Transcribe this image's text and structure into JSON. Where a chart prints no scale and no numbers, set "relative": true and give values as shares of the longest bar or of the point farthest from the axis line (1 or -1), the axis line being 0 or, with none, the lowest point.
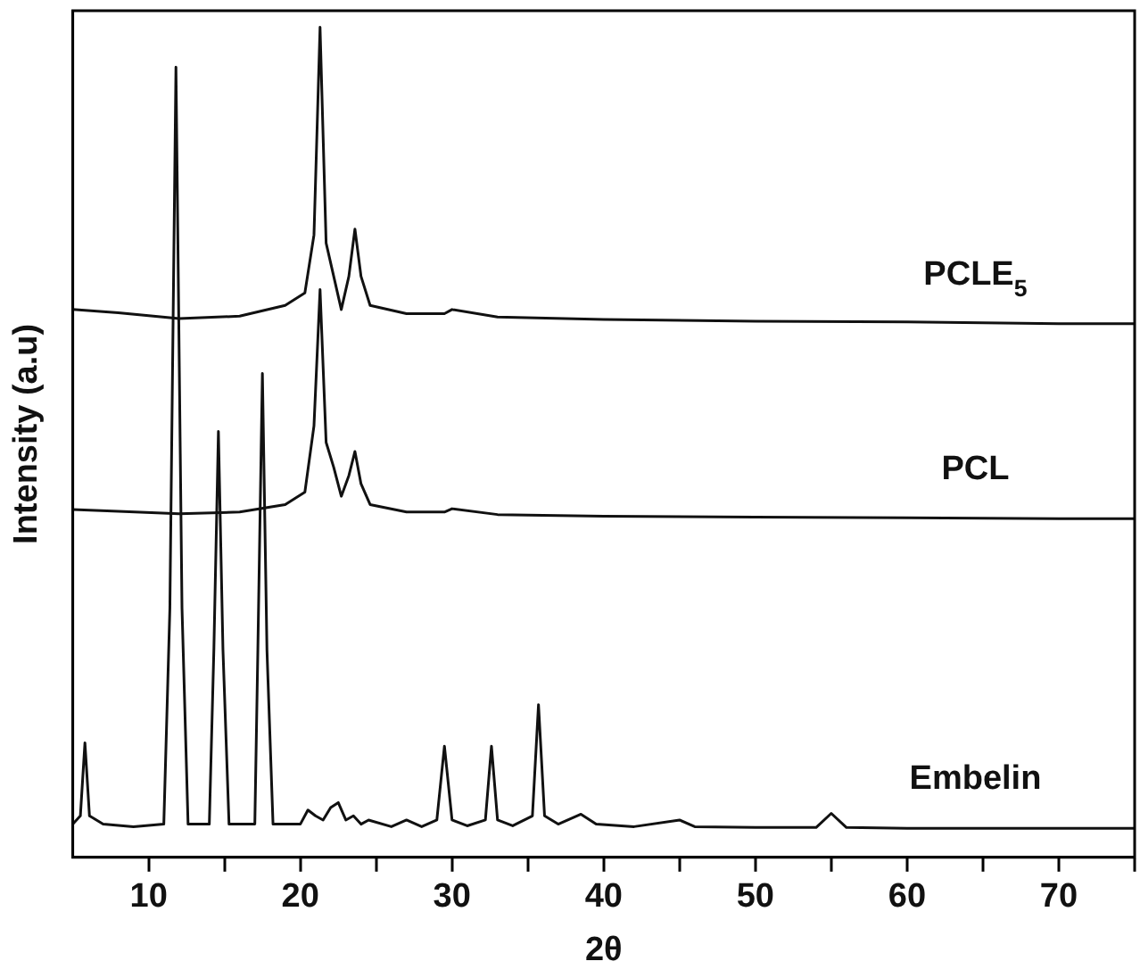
{
  "chart_data": {
    "type": "line",
    "relative": true,
    "xlabel": "2θ",
    "ylabel": "Intensity (a.u)",
    "xlim": [
      5,
      75
    ],
    "xticks": [
      10,
      {
        "value": 15,
        "label": null
      },
      20,
      {
        "value": 25,
        "label": null
      },
      30,
      {
        "value": 35,
        "label": null
      },
      40,
      {
        "value": 45,
        "label": null
      },
      50,
      {
        "value": 55,
        "label": null
      },
      60,
      {
        "value": 65,
        "label": null
      },
      70,
      {
        "value": 75,
        "label": null
      }
    ],
    "grid": false,
    "legend": false,
    "marker": "none",
    "line_style": "solid",
    "series": [
      {
        "name": "PCLE$_{5}$",
        "color": "#111111",
        "x": [
          5,
          8,
          12,
          16,
          19,
          20.3,
          20.9,
          21.3,
          21.7,
          22.2,
          22.7,
          23.2,
          23.6,
          24.0,
          24.6,
          27,
          29.5,
          30,
          33,
          40,
          50,
          60,
          70,
          75
        ],
        "values": [
          0.66,
          0.656,
          0.649,
          0.652,
          0.665,
          0.68,
          0.75,
          1.0,
          0.74,
          0.7,
          0.66,
          0.7,
          0.757,
          0.7,
          0.665,
          0.655,
          0.655,
          0.66,
          0.651,
          0.648,
          0.646,
          0.645,
          0.643,
          0.643
        ]
      },
      {
        "name": "PCL",
        "color": "#111111",
        "x": [
          5,
          8,
          12,
          16,
          19,
          20.3,
          20.9,
          21.3,
          21.7,
          22.2,
          22.7,
          23.2,
          23.6,
          24.0,
          24.6,
          27,
          29.5,
          30,
          33,
          40,
          50,
          60,
          70,
          75
        ],
        "values": [
          0.419,
          0.417,
          0.414,
          0.416,
          0.425,
          0.44,
          0.52,
          0.684,
          0.5,
          0.47,
          0.435,
          0.46,
          0.489,
          0.45,
          0.425,
          0.416,
          0.416,
          0.42,
          0.413,
          0.411,
          0.41,
          0.409,
          0.408,
          0.408
        ]
      },
      {
        "name": "Embelin",
        "color": "#111111",
        "x": [
          5,
          5.5,
          5.8,
          6.1,
          7,
          9,
          11,
          11.4,
          11.8,
          12.2,
          12.6,
          14,
          14.3,
          14.6,
          14.9,
          15.3,
          17,
          17.2,
          17.5,
          17.8,
          18.2,
          20,
          20.5,
          21,
          21.5,
          22,
          22.5,
          23,
          23.5,
          24,
          24.5,
          26,
          27,
          28,
          29,
          29.5,
          30,
          31,
          32.2,
          32.6,
          33,
          34,
          35.3,
          35.7,
          36.1,
          37,
          38.5,
          39.5,
          42,
          45,
          46,
          50,
          54,
          55,
          56,
          60,
          70,
          75
        ],
        "values": [
          0.04,
          0.05,
          0.138,
          0.05,
          0.04,
          0.037,
          0.04,
          0.3,
          0.952,
          0.3,
          0.04,
          0.04,
          0.25,
          0.513,
          0.25,
          0.04,
          0.04,
          0.25,
          0.583,
          0.25,
          0.04,
          0.04,
          0.057,
          0.05,
          0.045,
          0.06,
          0.066,
          0.045,
          0.05,
          0.04,
          0.045,
          0.037,
          0.045,
          0.037,
          0.045,
          0.134,
          0.045,
          0.038,
          0.045,
          0.134,
          0.045,
          0.038,
          0.05,
          0.184,
          0.05,
          0.04,
          0.052,
          0.04,
          0.037,
          0.045,
          0.037,
          0.036,
          0.036,
          0.053,
          0.036,
          0.035,
          0.035,
          0.035
        ]
      }
    ]
  }
}
